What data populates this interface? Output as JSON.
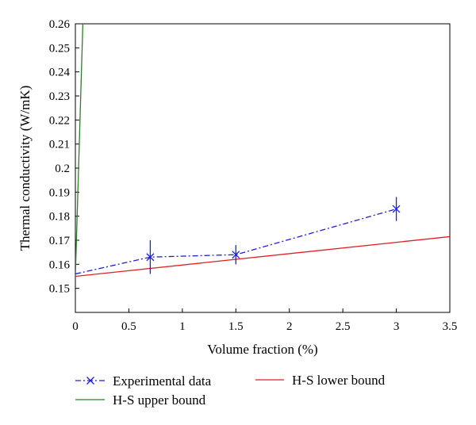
{
  "chart_data": {
    "type": "line",
    "title": "",
    "xlabel": "Volume fraction (%)",
    "ylabel": "Thermal conductivity (W/mK)",
    "xlim": [
      0,
      3.5
    ],
    "ylim": [
      0.14,
      0.26
    ],
    "xticks": [
      "0",
      "0.5",
      "1",
      "1.5",
      "2",
      "2.5",
      "3",
      "3.5"
    ],
    "yticks": [
      "0.15",
      "0.16",
      "0.17",
      "0.18",
      "0.19",
      "0.2",
      "0.21",
      "0.22",
      "0.23",
      "0.24",
      "0.25",
      "0.26"
    ],
    "grid": false,
    "legend_position": "bottom",
    "series": [
      {
        "name": "Experimental data",
        "color": "#1f1fd6",
        "style": "dash-dot",
        "marker": "x",
        "x": [
          0,
          0.7,
          1.5,
          3
        ],
        "y": [
          0.156,
          0.163,
          0.164,
          0.183
        ],
        "error": [
          0,
          0.007,
          0.004,
          0.005
        ]
      },
      {
        "name": "H-S upper bound",
        "color": "#2e7d2e",
        "style": "solid",
        "x": [
          0,
          0.07
        ],
        "y": [
          0.155,
          0.26
        ]
      },
      {
        "name": "H-S lower bound",
        "color": "#e02020",
        "style": "solid",
        "x": [
          0,
          3.5
        ],
        "y": [
          0.155,
          0.1715
        ]
      }
    ]
  }
}
